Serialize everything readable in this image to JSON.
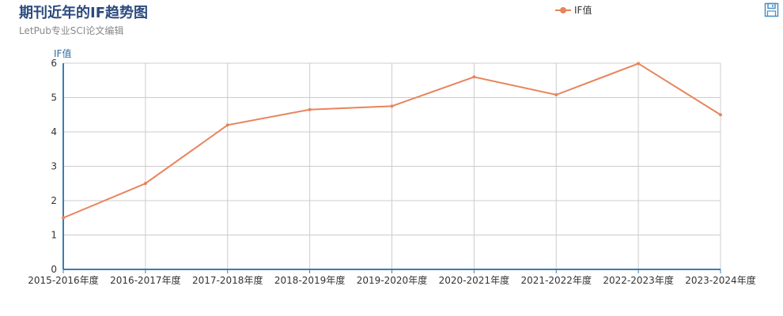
{
  "title": "期刊近年的IF趋势图",
  "subtitle": "LetPub专业SCI论文编辑",
  "legend": {
    "label": "IF值"
  },
  "icons": {
    "save": "save-icon"
  },
  "colors": {
    "series": "#e8845a",
    "axis": "#3b7cb3",
    "title": "#2b4a7d",
    "grid": "#cccccc"
  },
  "chart_data": {
    "type": "line",
    "title": "期刊近年的IF趋势图",
    "subtitle": "LetPub专业SCI论文编辑",
    "ylabel": "IF值",
    "xlabel": "",
    "ylim": [
      0,
      6
    ],
    "yticks": [
      "0",
      "1",
      "2",
      "3",
      "4",
      "5",
      "6"
    ],
    "grid": true,
    "legend_position": "top-right",
    "categories": [
      "2015-2016年度",
      "2016-2017年度",
      "2017-2018年度",
      "2018-2019年度",
      "2019-2020年度",
      "2020-2021年度",
      "2021-2022年度",
      "2022-2023年度",
      "2023-2024年度"
    ],
    "series": [
      {
        "name": "IF值",
        "values": [
          1.5,
          2.5,
          4.2,
          4.65,
          4.75,
          5.6,
          5.08,
          5.99,
          4.5
        ]
      }
    ]
  }
}
